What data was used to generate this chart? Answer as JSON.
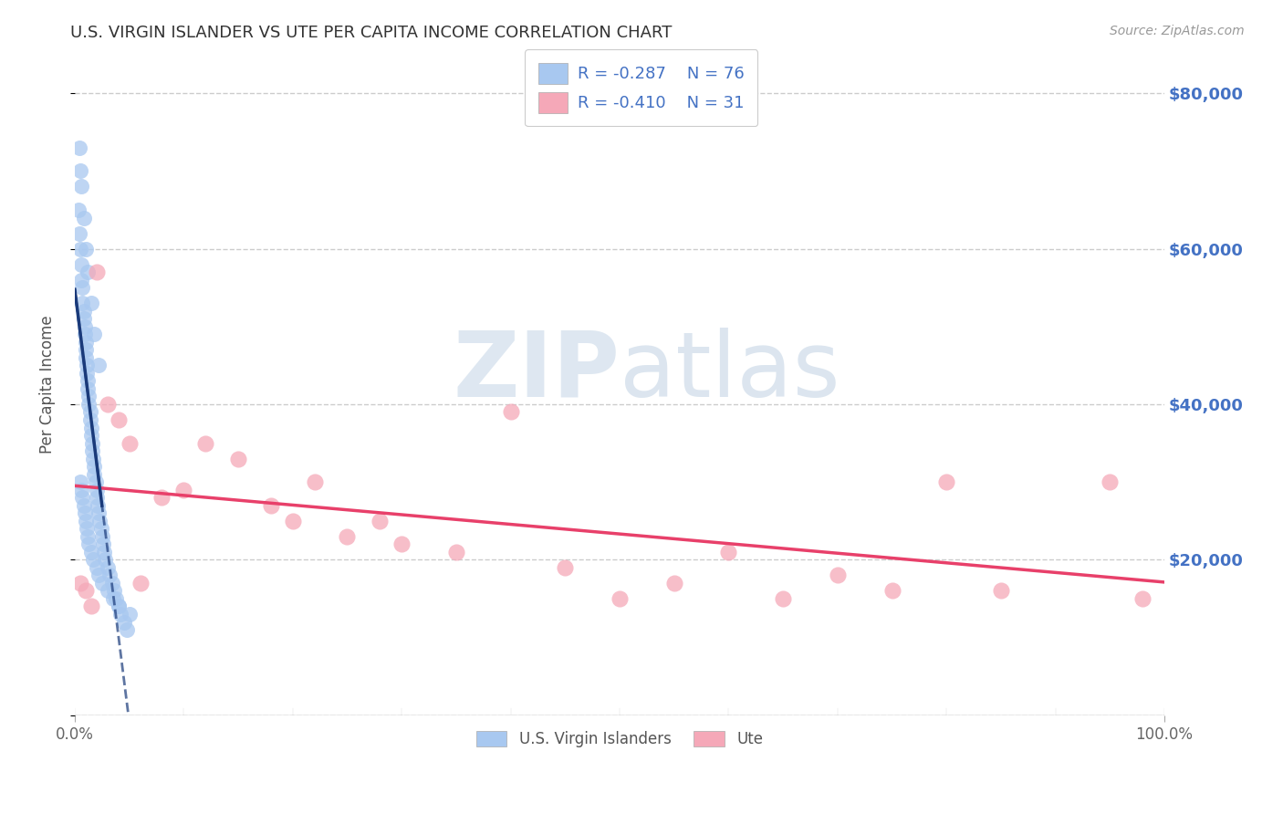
{
  "title": "U.S. VIRGIN ISLANDER VS UTE PER CAPITA INCOME CORRELATION CHART",
  "source": "Source: ZipAtlas.com",
  "ylabel": "Per Capita Income",
  "xlim": [
    0,
    100
  ],
  "ylim": [
    0,
    85000
  ],
  "yticks": [
    0,
    20000,
    40000,
    60000,
    80000
  ],
  "ytick_labels": [
    "",
    "$20,000",
    "$40,000",
    "$60,000",
    "$80,000"
  ],
  "xtick_labels": [
    "0.0%",
    "100.0%"
  ],
  "legend_blue_r": "R = -0.287",
  "legend_blue_n": "N = 76",
  "legend_pink_r": "R = -0.410",
  "legend_pink_n": "N = 31",
  "blue_color": "#A8C8F0",
  "pink_color": "#F5A8B8",
  "blue_line_color": "#1A3A7A",
  "pink_line_color": "#E8406A",
  "legend_label_blue": "U.S. Virgin Islanders",
  "legend_label_pink": "Ute",
  "background_color": "#FFFFFF",
  "grid_color": "#CCCCCC",
  "watermark_zip": "ZIP",
  "watermark_atlas": "atlas",
  "blue_x": [
    0.3,
    0.4,
    0.5,
    0.5,
    0.6,
    0.6,
    0.7,
    0.7,
    0.8,
    0.8,
    0.9,
    0.9,
    1.0,
    1.0,
    1.0,
    1.1,
    1.1,
    1.2,
    1.2,
    1.3,
    1.3,
    1.4,
    1.4,
    1.5,
    1.5,
    1.6,
    1.6,
    1.7,
    1.8,
    1.8,
    1.9,
    2.0,
    2.0,
    2.1,
    2.2,
    2.3,
    2.4,
    2.5,
    2.6,
    2.7,
    2.8,
    3.0,
    3.2,
    3.4,
    3.6,
    3.8,
    4.0,
    4.2,
    4.5,
    4.8,
    0.5,
    0.6,
    0.7,
    0.8,
    0.9,
    1.0,
    1.1,
    1.2,
    1.3,
    1.5,
    1.7,
    2.0,
    2.2,
    2.5,
    3.0,
    3.5,
    4.0,
    5.0,
    0.4,
    0.6,
    0.8,
    1.0,
    1.2,
    1.5,
    1.8,
    2.2
  ],
  "blue_y": [
    65000,
    62000,
    70000,
    60000,
    58000,
    56000,
    55000,
    53000,
    52000,
    51000,
    50000,
    49000,
    48000,
    47000,
    46000,
    45000,
    44000,
    43000,
    42000,
    41000,
    40000,
    39000,
    38000,
    37000,
    36000,
    35000,
    34000,
    33000,
    32000,
    31000,
    30000,
    29000,
    28000,
    27000,
    26000,
    25000,
    24000,
    23000,
    22000,
    21000,
    20000,
    19000,
    18000,
    17000,
    16000,
    15000,
    14000,
    13000,
    12000,
    11000,
    30000,
    29000,
    28000,
    27000,
    26000,
    25000,
    24000,
    23000,
    22000,
    21000,
    20000,
    19000,
    18000,
    17000,
    16000,
    15000,
    14000,
    13000,
    73000,
    68000,
    64000,
    60000,
    57000,
    53000,
    49000,
    45000
  ],
  "pink_x": [
    0.5,
    1.0,
    1.5,
    2.0,
    3.0,
    4.0,
    5.0,
    6.0,
    8.0,
    10.0,
    12.0,
    15.0,
    18.0,
    20.0,
    22.0,
    25.0,
    28.0,
    30.0,
    35.0,
    40.0,
    45.0,
    50.0,
    55.0,
    60.0,
    65.0,
    70.0,
    75.0,
    80.0,
    85.0,
    95.0,
    98.0
  ],
  "pink_y": [
    17000,
    16000,
    14000,
    57000,
    40000,
    38000,
    35000,
    17000,
    28000,
    29000,
    35000,
    33000,
    27000,
    25000,
    30000,
    23000,
    25000,
    22000,
    21000,
    39000,
    19000,
    15000,
    17000,
    21000,
    15000,
    18000,
    16000,
    30000,
    16000,
    30000,
    15000
  ]
}
